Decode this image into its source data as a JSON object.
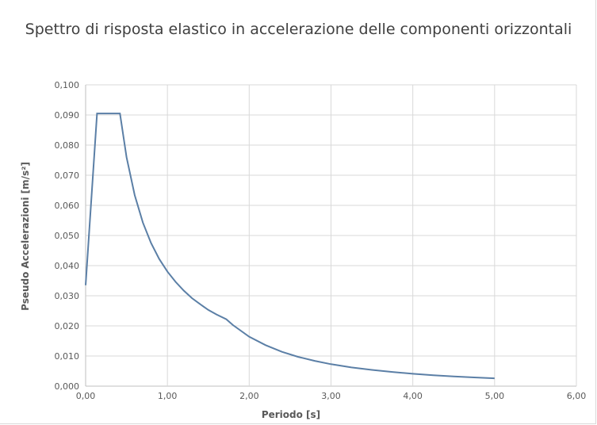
{
  "chart_data": {
    "type": "line",
    "title": "Spettro di risposta elastico in accelerazione delle componenti orizzontali",
    "xlabel": "Periodo   [s]",
    "ylabel": "Pseudo Accelerazioni   [m/s²]",
    "xlim": [
      0,
      6
    ],
    "ylim": [
      0,
      0.1
    ],
    "x_ticks": [
      "0,00",
      "1,00",
      "2,00",
      "3,00",
      "4,00",
      "5,00",
      "6,00"
    ],
    "y_ticks": [
      "0,000",
      "0,010",
      "0,020",
      "0,030",
      "0,040",
      "0,050",
      "0,060",
      "0,070",
      "0,080",
      "0,090",
      "0,100"
    ],
    "grid": true,
    "legend": "none",
    "series_color": "#5b7fa6",
    "series": [
      {
        "x": [
          0.0,
          0.14,
          0.2,
          0.3,
          0.42,
          0.5,
          0.6,
          0.7,
          0.8,
          0.9,
          1.0,
          1.1,
          1.2,
          1.3,
          1.4,
          1.5,
          1.6,
          1.72,
          1.8,
          2.0,
          2.2,
          2.4,
          2.6,
          2.8,
          3.0,
          3.25,
          3.5,
          3.75,
          4.0,
          4.25,
          4.5,
          4.75,
          5.0
        ],
        "y": [
          0.0335,
          0.0905,
          0.0905,
          0.0905,
          0.0905,
          0.076,
          0.0634,
          0.0543,
          0.0475,
          0.0422,
          0.038,
          0.0346,
          0.0317,
          0.0292,
          0.0272,
          0.0253,
          0.0238,
          0.0222,
          0.0203,
          0.0164,
          0.0136,
          0.0114,
          0.0097,
          0.0084,
          0.0073,
          0.0062,
          0.0054,
          0.0047,
          0.0041,
          0.0036,
          0.0032,
          0.0029,
          0.0026
        ]
      }
    ]
  }
}
